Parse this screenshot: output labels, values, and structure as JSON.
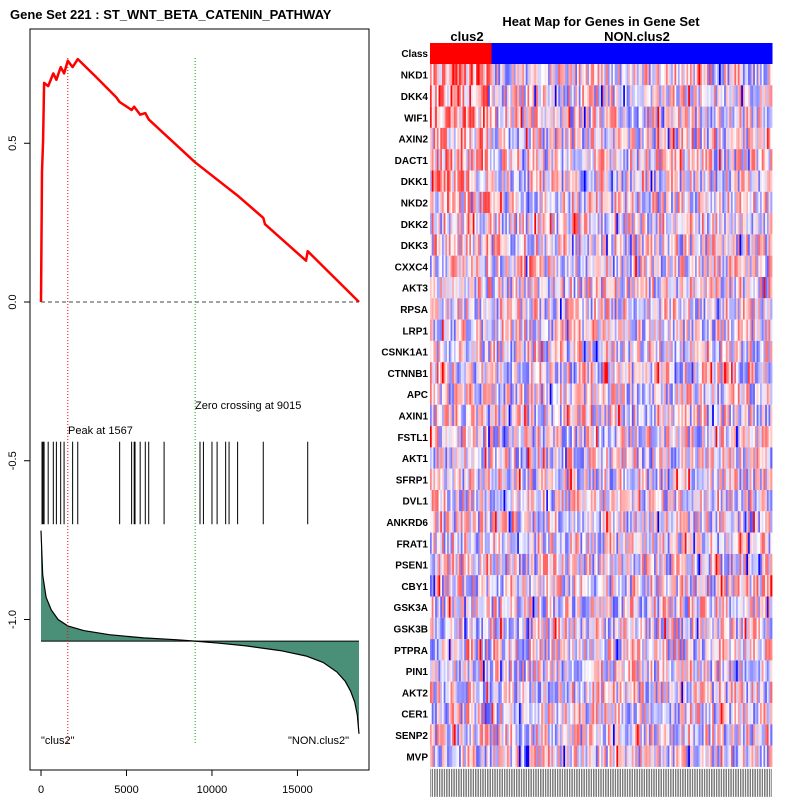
{
  "chart_data": [
    {
      "type": "line",
      "title_prefix": "Gene Set",
      "gene_set_number": "221",
      "gene_set_name": "ST_WNT_BETA_CATENIN_PATHWAY",
      "title": "Gene Set  221 : ST_WNT_BETA_CATENIN_PATHWAY",
      "xlim": [
        0,
        18600
      ],
      "ylim": [
        -1.4,
        0.8
      ],
      "x_ticks": [
        0,
        5000,
        10000,
        15000
      ],
      "y_ticks": [
        0.5,
        0.0,
        -0.5,
        -1.0
      ],
      "x_tick_labels": [
        "0",
        "5000",
        "10000",
        "15000"
      ],
      "y_tick_labels": [
        "0.5",
        "0.0",
        "-0.5",
        "-1.0"
      ],
      "running_es": {
        "x": [
          0,
          60,
          120,
          180,
          420,
          720,
          900,
          1150,
          1350,
          1567,
          1850,
          2150,
          3200,
          4400,
          4600,
          5300,
          5450,
          5800,
          6100,
          6300,
          7200,
          9015,
          11500,
          13000,
          13100,
          15500,
          15600,
          18600
        ],
        "y": [
          0.0,
          0.41,
          0.51,
          0.69,
          0.68,
          0.72,
          0.7,
          0.74,
          0.72,
          0.76,
          0.74,
          0.765,
          0.71,
          0.645,
          0.63,
          0.605,
          0.615,
          0.59,
          0.595,
          0.575,
          0.53,
          0.44,
          0.335,
          0.265,
          0.245,
          0.13,
          0.16,
          0.0
        ]
      },
      "baseline_y": 0.0,
      "peak": {
        "x": 1567,
        "label": "Peak at 1567"
      },
      "zero_crossing": {
        "x": 9015,
        "label": "Zero crossing at 9015"
      },
      "hit_positions": [
        60,
        120,
        180,
        420,
        720,
        900,
        1150,
        1350,
        1850,
        2150,
        4600,
        5300,
        5450,
        5500,
        5800,
        6100,
        6300,
        7200,
        9300,
        9500,
        10000,
        10300,
        10800,
        11000,
        11500,
        13000,
        15600
      ],
      "hit_y_range": [
        -0.44,
        -0.7
      ],
      "ranked_metric": {
        "x": [
          0,
          100,
          300,
          600,
          1000,
          1567,
          2500,
          4000,
          6000,
          8000,
          9015,
          10500,
          12000,
          14000,
          15500,
          16500,
          17300,
          17800,
          18100,
          18350,
          18500,
          18600
        ],
        "y": [
          -0.72,
          -0.86,
          -0.93,
          -0.97,
          -1.0,
          -1.02,
          -1.035,
          -1.048,
          -1.058,
          -1.064,
          -1.068,
          -1.075,
          -1.083,
          -1.098,
          -1.115,
          -1.135,
          -1.165,
          -1.195,
          -1.225,
          -1.26,
          -1.3,
          -1.36
        ]
      },
      "metric_zero_y": -1.068,
      "class_label_left": "\"clus2\"",
      "class_label_right": "\"NON.clus2\"",
      "colors": {
        "es_line": "#ff0000",
        "peak_line": "#ff0000",
        "zero_line": "#00aa00",
        "metric_fill": "#4a8f78",
        "hits": "#000000"
      }
    },
    {
      "type": "heatmap",
      "title": "Heat Map for Genes in Gene Set",
      "class_row_label": "Class",
      "class_groups": [
        {
          "name": "clus2",
          "fraction": 0.18,
          "color": "#ff0000"
        },
        {
          "name": "NON.clus2",
          "fraction": 0.82,
          "color": "#0000ff"
        }
      ],
      "genes": [
        "NKD1",
        "DKK4",
        "WIF1",
        "AXIN2",
        "DACT1",
        "DKK1",
        "NKD2",
        "DKK2",
        "DKK3",
        "CXXC4",
        "AKT3",
        "RPSA",
        "LRP1",
        "CSNK1A1",
        "CTNNB1",
        "APC",
        "AXIN1",
        "FSTL1",
        "AKT1",
        "SFRP1",
        "DVL1",
        "ANKRD6",
        "FRAT1",
        "PSEN1",
        "CBY1",
        "GSK3A",
        "GSK3B",
        "PTPRA",
        "PIN1",
        "AKT2",
        "CER1",
        "SENP2",
        "MVP"
      ],
      "n_samples": 200,
      "colors": {
        "high": "#ff0000",
        "mid": "#ffffff",
        "low": "#0000ff"
      }
    }
  ]
}
